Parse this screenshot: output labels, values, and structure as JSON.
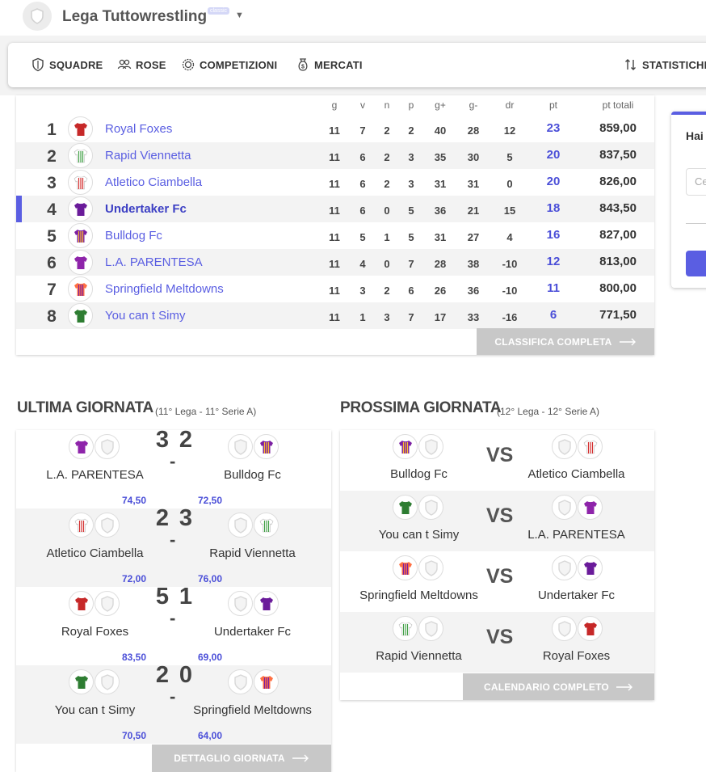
{
  "header": {
    "league_name": "Lega Tuttowrestling",
    "badge": "classic",
    "logo_icon": "shield-icon"
  },
  "nav": {
    "items": [
      {
        "label": "SQUADRE",
        "icon": "shield-icon"
      },
      {
        "label": "ROSE",
        "icon": "users-icon"
      },
      {
        "label": "COMPETIZIONI",
        "icon": "medal-icon"
      },
      {
        "label": "MERCATI",
        "icon": "money-bag-icon"
      },
      {
        "label": "STATISTICHE",
        "icon": "sort-arrows-icon"
      }
    ]
  },
  "standings": {
    "columns": [
      "g",
      "v",
      "n",
      "p",
      "g+",
      "g-",
      "dr",
      "pt",
      "pt totali"
    ],
    "rows": [
      {
        "rank": "1",
        "team": "Royal Foxes",
        "g": "11",
        "v": "7",
        "n": "2",
        "p": "2",
        "gf": "40",
        "ga": "28",
        "dr": "12",
        "pt": "23",
        "ptt": "859,00",
        "jersey": "#c62828",
        "stripe": ""
      },
      {
        "rank": "2",
        "team": "Rapid Viennetta",
        "g": "11",
        "v": "6",
        "n": "2",
        "p": "3",
        "gf": "35",
        "ga": "30",
        "dr": "5",
        "pt": "20",
        "ptt": "837,50",
        "jersey": "#ffffff",
        "stripe": "#43a047"
      },
      {
        "rank": "3",
        "team": "Atletico Ciambella",
        "g": "11",
        "v": "6",
        "n": "2",
        "p": "3",
        "gf": "31",
        "ga": "31",
        "dr": "0",
        "pt": "20",
        "ptt": "826,00",
        "jersey": "#ffffff",
        "stripe": "#d32f2f"
      },
      {
        "rank": "4",
        "team": "Undertaker Fc",
        "g": "11",
        "v": "6",
        "n": "0",
        "p": "5",
        "gf": "36",
        "ga": "21",
        "dr": "15",
        "pt": "18",
        "ptt": "843,50",
        "jersey": "#6a1b9a",
        "stripe": ""
      },
      {
        "rank": "5",
        "team": "Bulldog Fc",
        "g": "11",
        "v": "5",
        "n": "1",
        "p": "5",
        "gf": "31",
        "ga": "27",
        "dr": "4",
        "pt": "16",
        "ptt": "827,00",
        "jersey": "#7b1fa2",
        "stripe": "#fbc02d"
      },
      {
        "rank": "6",
        "team": "L.A. PARENTESA",
        "g": "11",
        "v": "4",
        "n": "0",
        "p": "7",
        "gf": "28",
        "ga": "38",
        "dr": "-10",
        "pt": "12",
        "ptt": "813,00",
        "jersey": "#8e24aa",
        "stripe": ""
      },
      {
        "rank": "7",
        "team": "Springfield Meltdowns",
        "g": "11",
        "v": "3",
        "n": "2",
        "p": "6",
        "gf": "26",
        "ga": "36",
        "dr": "-10",
        "pt": "11",
        "ptt": "800,00",
        "jersey": "#ff7043",
        "stripe": "#7b1fa2"
      },
      {
        "rank": "8",
        "team": "You can t Simy",
        "g": "11",
        "v": "1",
        "n": "3",
        "p": "7",
        "gf": "17",
        "ga": "33",
        "dr": "-16",
        "pt": "6",
        "ptt": "771,50",
        "jersey": "#2e7d32",
        "stripe": ""
      }
    ],
    "highlight_rank": "4",
    "full_button": "CLASSIFICA COMPLETA"
  },
  "side": {
    "title": "Hai",
    "input_placeholder": "Ce"
  },
  "last_round": {
    "title": "ULTIMA GIORNATA",
    "subtitle": "(11° Lega - 11° Serie A)",
    "matches": [
      {
        "home": "L.A. PARENTESA",
        "away": "Bulldog Fc",
        "home_score": "3",
        "away_score": "2",
        "home_pts": "74,50",
        "away_pts": "72,50"
      },
      {
        "home": "Atletico Ciambella",
        "away": "Rapid Viennetta",
        "home_score": "2",
        "away_score": "3",
        "home_pts": "72,00",
        "away_pts": "76,00"
      },
      {
        "home": "Royal Foxes",
        "away": "Undertaker Fc",
        "home_score": "5",
        "away_score": "1",
        "home_pts": "83,50",
        "away_pts": "69,00"
      },
      {
        "home": "You can t Simy",
        "away": "Springfield Meltdowns",
        "home_score": "2",
        "away_score": "0",
        "home_pts": "70,50",
        "away_pts": "64,00"
      }
    ],
    "button": "DETTAGLIO GIORNATA"
  },
  "next_round": {
    "title": "PROSSIMA GIORNATA",
    "subtitle": "(12° Lega - 12° Serie A)",
    "vs_label": "VS",
    "matches": [
      {
        "home": "Bulldog Fc",
        "away": "Atletico Ciambella"
      },
      {
        "home": "You can t Simy",
        "away": "L.A. PARENTESA"
      },
      {
        "home": "Springfield Meltdowns",
        "away": "Undertaker Fc"
      },
      {
        "home": "Rapid Viennetta",
        "away": "Royal Foxes"
      }
    ],
    "button": "CALENDARIO COMPLETO"
  },
  "colors": {
    "accent": "#5a5ee2",
    "link": "#4b4fd8",
    "button_grey": "#c8c8c8",
    "row_shade": "#f3f3f3"
  }
}
